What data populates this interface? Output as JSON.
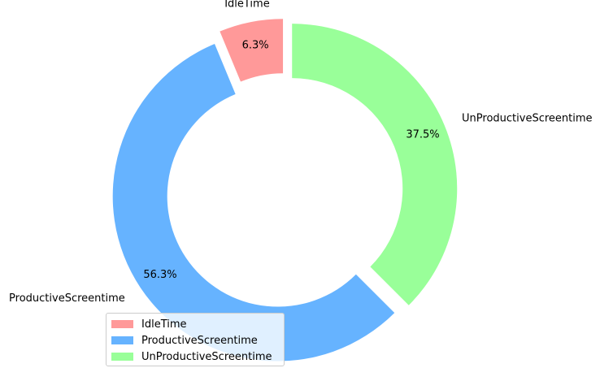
{
  "chart_data": {
    "type": "pie",
    "style": "donut",
    "labels": [
      "IdleTime",
      "ProductiveScreentime",
      "UnProductiveScreentime"
    ],
    "values": [
      6.25,
      56.25,
      37.5
    ],
    "percent_labels": [
      "6.3%",
      "56.3%",
      "37.5%"
    ],
    "colors": [
      "#ff9999",
      "#66b3ff",
      "#99ff99"
    ],
    "exploded": true,
    "start_angle_deg": 90,
    "direction": "counterclockwise",
    "legend": {
      "placement": "lower-left",
      "entries": [
        "IdleTime",
        "ProductiveScreentime",
        "UnProductiveScreentime"
      ]
    }
  }
}
